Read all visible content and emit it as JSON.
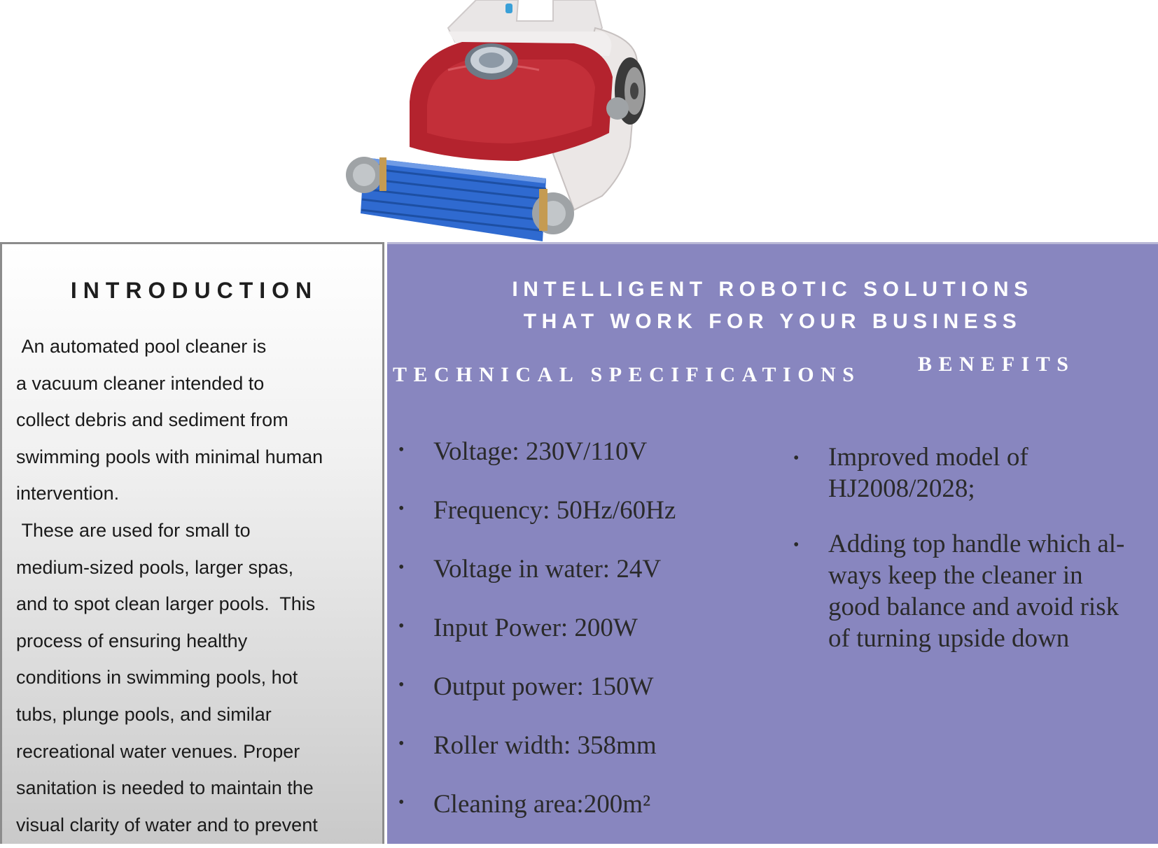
{
  "colors": {
    "panel_purple": "#8886bf",
    "heading_white": "#ffffff",
    "body_text": "#1a1a1a",
    "product_red": "#b4232e",
    "roller_blue": "#2f6ad0"
  },
  "product_image": {
    "icon": "pool-cleaner-robot-image"
  },
  "introduction": {
    "title": "INTRODUCTION",
    "body": " An automated pool cleaner is\na vacuum cleaner intended to\ncollect debris and sediment from\nswimming pools with minimal human\nintervention.\n These are used for small to\nmedium-sized pools, larger spas,\nand to spot clean larger pools.  This\nprocess of ensuring healthy\nconditions in swimming pools, hot\ntubs, plunge pools, and similar\nrecreational water venues. Proper\nsanitation is needed to maintain the\nvisual clarity of water and to prevent"
  },
  "headline": {
    "line1": "INTELLIGENT ROBOTIC SOLUTIONS",
    "line2": "THAT WORK FOR YOUR BUSINESS"
  },
  "technical_specifications": {
    "heading": "TECHNICAL SPECIFICATIONS",
    "items": [
      "Voltage: 230V/110V",
      "Frequency: 50Hz/60Hz",
      "Voltage in water: 24V",
      "Input Power: 200W",
      "Output power: 150W",
      "Roller width: 358mm",
      "Cleaning area:200m²"
    ]
  },
  "benefits": {
    "heading": "BENEFITS",
    "items": [
      "Improved model of\nHJ2008/2028;",
      "Adding top handle which al-\nways keep the cleaner in\ngood balance and avoid risk\nof turning upside down"
    ]
  },
  "bullet_glyph": "•"
}
